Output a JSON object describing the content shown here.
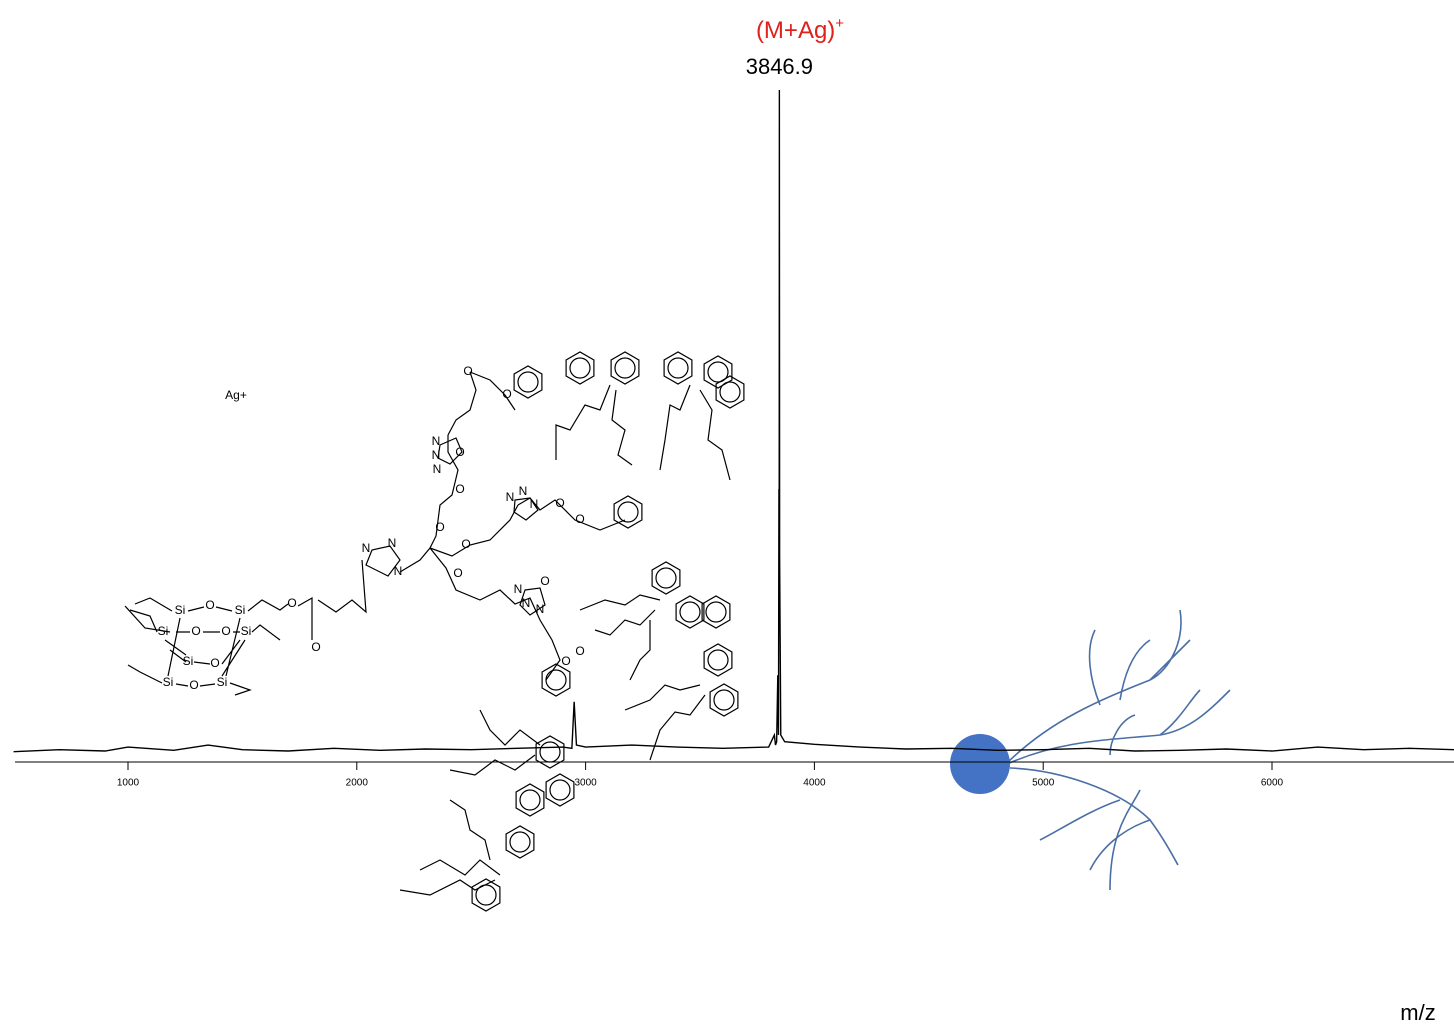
{
  "chart_data": {
    "type": "spectrum",
    "annotation": {
      "text": "(M+Ag)",
      "superscript": "+"
    },
    "peak_index": 29,
    "x_label": "m/z",
    "color": "#000000",
    "annotation_color": "#e0201b",
    "x": [
      500,
      700,
      900,
      1000,
      1200,
      1350,
      1500,
      1700,
      1900,
      2100,
      2300,
      2500,
      2700,
      2900,
      2940,
      2950,
      2960,
      3000,
      3200,
      3400,
      3600,
      3800,
      3825,
      3830,
      3835,
      3840,
      3843,
      3845,
      3846,
      3846.9,
      3848,
      3853,
      3870,
      4000,
      4200,
      4400,
      4600,
      4800,
      5000,
      5200,
      5400,
      5600,
      5800,
      6000,
      6200,
      6400,
      6600,
      6800
    ],
    "values": [
      0.5,
      0.8,
      0.6,
      1.2,
      0.7,
      1.5,
      0.8,
      0.6,
      1.0,
      0.7,
      0.9,
      0.8,
      1.0,
      1.2,
      1.0,
      8,
      1.5,
      1.2,
      1.5,
      1.2,
      1.0,
      1.2,
      3,
      1.5,
      2,
      12,
      3,
      40,
      20,
      100,
      30,
      3,
      2,
      1.6,
      1.2,
      0.9,
      1.0,
      0.7,
      0.8,
      1.0,
      0.6,
      0.7,
      0.9,
      0.6,
      1.2,
      0.8,
      1.0,
      0.8
    ],
    "xlim": [
      500,
      6800
    ],
    "ylim": [
      0,
      100
    ],
    "xticks": [
      1000,
      2000,
      3000,
      4000,
      5000,
      6000
    ]
  },
  "structure": {
    "ion": "Ag+",
    "atoms": [
      "Si",
      "O",
      "Si",
      "Si",
      "O",
      "O",
      "Si",
      "O",
      "Si",
      "Si",
      "O",
      "Si",
      "O",
      "O",
      "N",
      "N",
      "N",
      "O",
      "O",
      "O",
      "O",
      "N",
      "N",
      "N",
      "O",
      "O",
      "O",
      "N",
      "N",
      "N",
      "O",
      "O",
      "O",
      "N",
      "N",
      "N",
      "O",
      "O"
    ]
  }
}
